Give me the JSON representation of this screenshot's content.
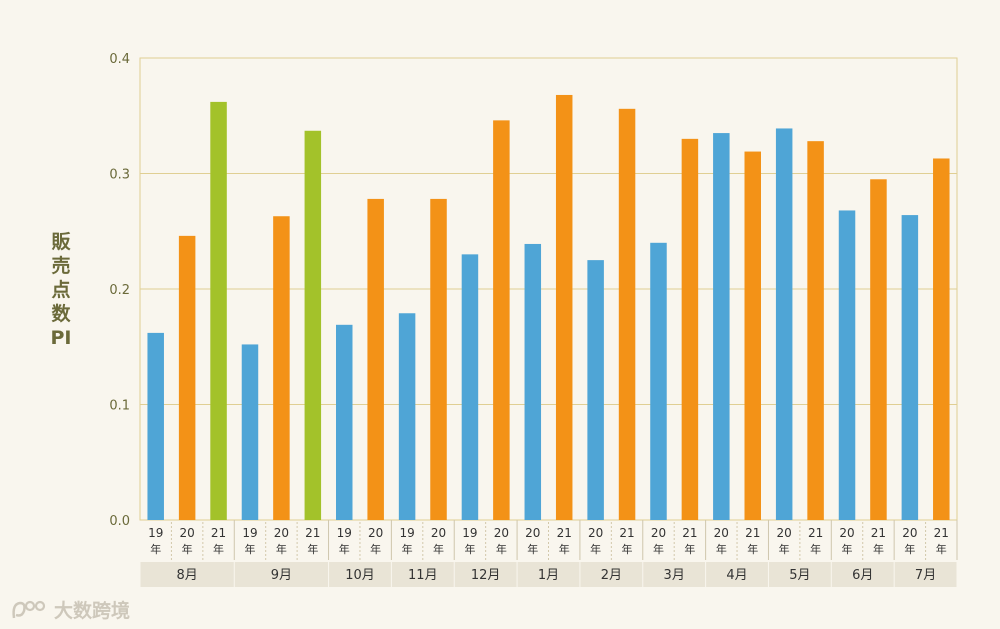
{
  "chart_data": {
    "type": "bar",
    "ylabel": "販売点数PI",
    "ylim": [
      0,
      0.4
    ],
    "yticks": [
      "0.0",
      "0.1",
      "0.2",
      "0.3",
      "0.4"
    ],
    "year_suffix": "年",
    "groups": [
      {
        "month": "8月",
        "bars": [
          {
            "year": "19",
            "value": 0.162
          },
          {
            "year": "20",
            "value": 0.246
          },
          {
            "year": "21",
            "value": 0.362
          }
        ]
      },
      {
        "month": "9月",
        "bars": [
          {
            "year": "19",
            "value": 0.152
          },
          {
            "year": "20",
            "value": 0.263
          },
          {
            "year": "21",
            "value": 0.337
          }
        ]
      },
      {
        "month": "10月",
        "bars": [
          {
            "year": "19",
            "value": 0.169
          },
          {
            "year": "20",
            "value": 0.278
          }
        ]
      },
      {
        "month": "11月",
        "bars": [
          {
            "year": "19",
            "value": 0.179
          },
          {
            "year": "20",
            "value": 0.278
          }
        ]
      },
      {
        "month": "12月",
        "bars": [
          {
            "year": "19",
            "value": 0.23
          },
          {
            "year": "20",
            "value": 0.346
          }
        ]
      },
      {
        "month": "1月",
        "bars": [
          {
            "year": "20",
            "value": 0.239
          },
          {
            "year": "21",
            "value": 0.368
          }
        ]
      },
      {
        "month": "2月",
        "bars": [
          {
            "year": "20",
            "value": 0.225
          },
          {
            "year": "21",
            "value": 0.356
          }
        ]
      },
      {
        "month": "3月",
        "bars": [
          {
            "year": "20",
            "value": 0.24
          },
          {
            "year": "21",
            "value": 0.33
          }
        ]
      },
      {
        "month": "4月",
        "bars": [
          {
            "year": "20",
            "value": 0.335
          },
          {
            "year": "21",
            "value": 0.319
          }
        ]
      },
      {
        "month": "5月",
        "bars": [
          {
            "year": "20",
            "value": 0.339
          },
          {
            "year": "21",
            "value": 0.328
          }
        ]
      },
      {
        "month": "6月",
        "bars": [
          {
            "year": "20",
            "value": 0.268
          },
          {
            "year": "21",
            "value": 0.295
          }
        ]
      },
      {
        "month": "7月",
        "bars": [
          {
            "year": "20",
            "value": 0.264
          },
          {
            "year": "21",
            "value": 0.313
          }
        ]
      }
    ],
    "colors": {
      "blue": "#4fa5d6",
      "orange": "#f39217",
      "green": "#a3c22a"
    },
    "grid": true
  },
  "colors": {
    "grid": "#e0cf93",
    "axis_text": "#6b6a3a",
    "month_band": "#e9e4d6",
    "background": "#f9f6ee"
  },
  "watermark": "大数跨境"
}
